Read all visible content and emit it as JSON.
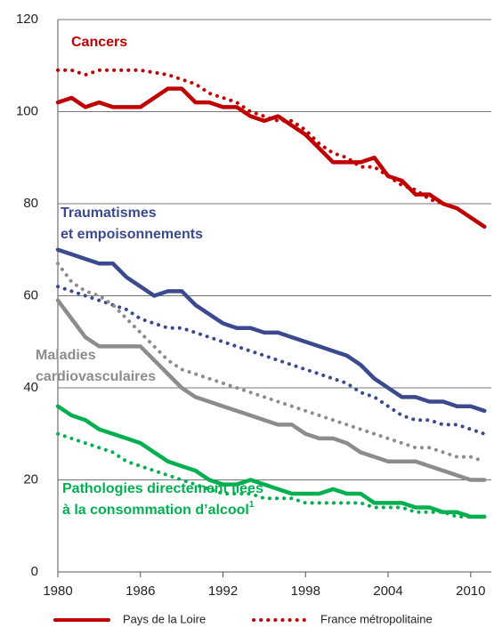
{
  "chart_data": {
    "type": "line",
    "x": [
      1980,
      1981,
      1982,
      1983,
      1984,
      1985,
      1986,
      1987,
      1988,
      1989,
      1990,
      1991,
      1992,
      1993,
      1994,
      1995,
      1996,
      1997,
      1998,
      1999,
      2000,
      2001,
      2002,
      2003,
      2004,
      2005,
      2006,
      2007,
      2008,
      2009,
      2010,
      2011
    ],
    "xlim": [
      1980,
      2011.5
    ],
    "xticks": [
      1980,
      1986,
      1992,
      1998,
      2004,
      2010
    ],
    "ylim": [
      0,
      120
    ],
    "yticks": [
      0,
      20,
      40,
      60,
      80,
      100,
      120
    ],
    "grid": true,
    "legend": [
      {
        "name": "Pays de la Loire",
        "style": "solid"
      },
      {
        "name": "France métropolitaine",
        "style": "dotted"
      }
    ],
    "series": [
      {
        "name": [
          "Cancers"
        ],
        "color": "#c00000",
        "values": [
          102,
          103,
          101,
          102,
          101,
          101,
          101,
          103,
          105,
          105,
          102,
          102,
          101,
          101,
          99,
          98,
          99,
          97,
          95,
          92,
          89,
          89,
          89,
          90,
          86,
          85,
          82,
          82,
          80,
          79,
          77,
          75
        ],
        "france_values": [
          109,
          109,
          108,
          109,
          109,
          109,
          109,
          108.5,
          108,
          107,
          106,
          104,
          103,
          102,
          100,
          99,
          98,
          98,
          96,
          93,
          91,
          90,
          88,
          88,
          86,
          84,
          83,
          81,
          80,
          79,
          77,
          75
        ]
      },
      {
        "name": [
          "Traumatismes",
          "et empoisonnements"
        ],
        "color": "#3b4a8f",
        "values": [
          70,
          69,
          68,
          67,
          67,
          64,
          62,
          60,
          61,
          61,
          58,
          56,
          54,
          53,
          53,
          52,
          52,
          51,
          50,
          49,
          48,
          47,
          45,
          42,
          40,
          38,
          38,
          37,
          37,
          36,
          36,
          35
        ],
        "france_values": [
          62,
          61,
          60,
          59,
          58,
          57,
          55,
          54,
          53,
          53,
          52,
          51,
          50,
          49,
          48,
          47,
          46,
          45,
          44,
          43,
          42,
          41,
          39,
          38,
          36,
          34,
          33,
          33,
          32,
          32,
          31,
          30
        ]
      },
      {
        "name": [
          "Maladies",
          "cardiovasculaires"
        ],
        "color": "#8c8c8c",
        "values": [
          59,
          55,
          51,
          49,
          49,
          49,
          49,
          46,
          43,
          40,
          38,
          37,
          36,
          35,
          34,
          33,
          32,
          32,
          30,
          29,
          29,
          28,
          26,
          25,
          24,
          24,
          24,
          23,
          22,
          21,
          20,
          20
        ],
        "france_values": [
          67,
          63,
          61,
          60,
          58,
          55,
          52,
          49,
          46,
          44,
          43,
          42,
          41,
          40,
          39,
          38,
          37,
          36,
          35,
          34,
          33,
          32,
          31,
          30,
          29,
          28,
          27,
          27,
          26,
          25,
          25,
          24
        ]
      },
      {
        "name": [
          "Pathologies directement liées",
          "à la consommation d’alcool"
        ],
        "note": "1",
        "color": "#00b050",
        "values": [
          36,
          34,
          33,
          31,
          30,
          29,
          28,
          26,
          24,
          23,
          22,
          20,
          19,
          19,
          20,
          19,
          18,
          17,
          17,
          17,
          18,
          17,
          17,
          15,
          15,
          15,
          14,
          14,
          13,
          13,
          12,
          12
        ],
        "france_values": [
          30,
          29,
          28,
          27,
          26,
          24,
          23,
          22,
          21,
          20,
          19,
          18,
          17,
          17,
          17,
          16,
          16,
          16,
          15,
          15,
          15,
          15,
          15,
          14,
          14,
          14,
          13,
          13,
          13,
          12,
          12,
          12
        ]
      }
    ]
  }
}
